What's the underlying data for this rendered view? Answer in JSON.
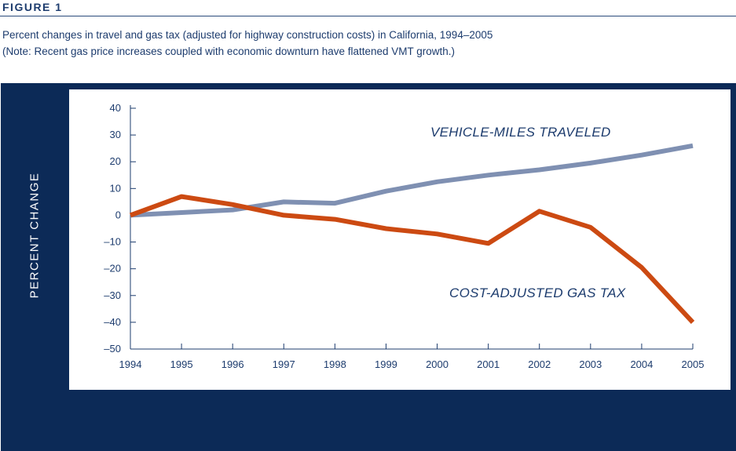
{
  "figure_label": "FIGURE 1",
  "caption_line1": "Percent changes in travel and gas tax (adjusted for highway construction costs) in California, 1994–2005",
  "caption_line2": "(Note: Recent gas price increases coupled with economic downturn have flattened VMT growth.)",
  "colors": {
    "panel": "#0c2a57",
    "text": "#1d3c6e",
    "vmt": "#7f90b2",
    "gas_tax": "#cc4a12"
  },
  "chart_data": {
    "type": "line",
    "xlabel": "",
    "ylabel": "PERCENT CHANGE",
    "ylim": [
      -50,
      40
    ],
    "y_ticks": [
      40,
      30,
      20,
      10,
      0,
      -10,
      -20,
      -30,
      -40,
      -50
    ],
    "y_tick_labels": [
      "40",
      "30",
      "20",
      "10",
      "0",
      "–10",
      "–20",
      "–30",
      "–40",
      "–50"
    ],
    "x": [
      "1994",
      "1995",
      "1996",
      "1997",
      "1998",
      "1999",
      "2000",
      "2001",
      "2002",
      "2003",
      "2004",
      "2005"
    ],
    "grid": false,
    "legend": "inline labels",
    "series": [
      {
        "name": "VEHICLE-MILES TRAVELED",
        "color": "#7f90b2",
        "values": [
          0,
          1,
          2,
          5,
          4.5,
          9,
          12.5,
          15,
          17,
          19.5,
          22.5,
          26
        ]
      },
      {
        "name": "COST-ADJUSTED GAS TAX",
        "color": "#cc4a12",
        "values": [
          0,
          7,
          4,
          0,
          -1.5,
          -5,
          -7,
          -10.5,
          1.5,
          -4.5,
          -19.5,
          -40
        ]
      }
    ]
  }
}
